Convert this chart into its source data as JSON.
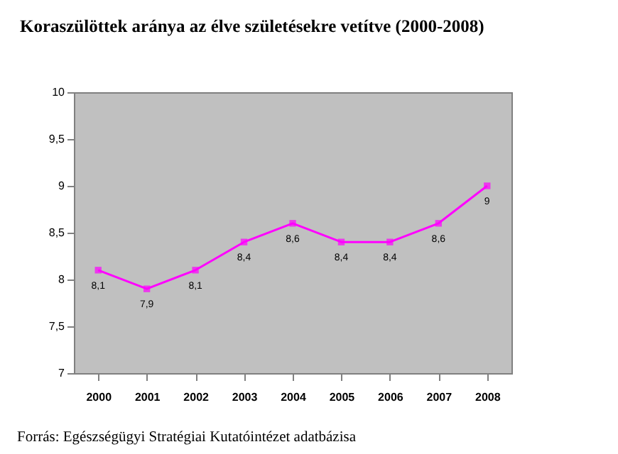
{
  "chart_data": {
    "type": "line",
    "title": "Koraszülöttek aránya az élve születésekre vetítve (2000-2008)",
    "categories": [
      "2000",
      "2001",
      "2002",
      "2003",
      "2004",
      "2005",
      "2006",
      "2007",
      "2008"
    ],
    "series": [
      {
        "color": "#ff00ff",
        "values": [
          8.1,
          7.9,
          8.1,
          8.4,
          8.6,
          8.4,
          8.4,
          8.6,
          9
        ],
        "value_labels": [
          "8,1",
          "7,9",
          "8,1",
          "8,4",
          "8,6",
          "8,4",
          "8,4",
          "8,6",
          "9"
        ]
      }
    ],
    "ylim": [
      7,
      10
    ],
    "yticks": [
      7,
      {
        "value": 7.5,
        "label": "7,5"
      },
      8,
      {
        "value": 8.5,
        "label": "8,5"
      },
      9,
      {
        "value": 9.5,
        "label": "9,5"
      },
      10
    ],
    "grid": false,
    "marker": "square",
    "line_style": "solid",
    "annotations": [
      "Forrás: Egészségügyi Stratégiai Kutatóintézet adatbázisa"
    ]
  }
}
